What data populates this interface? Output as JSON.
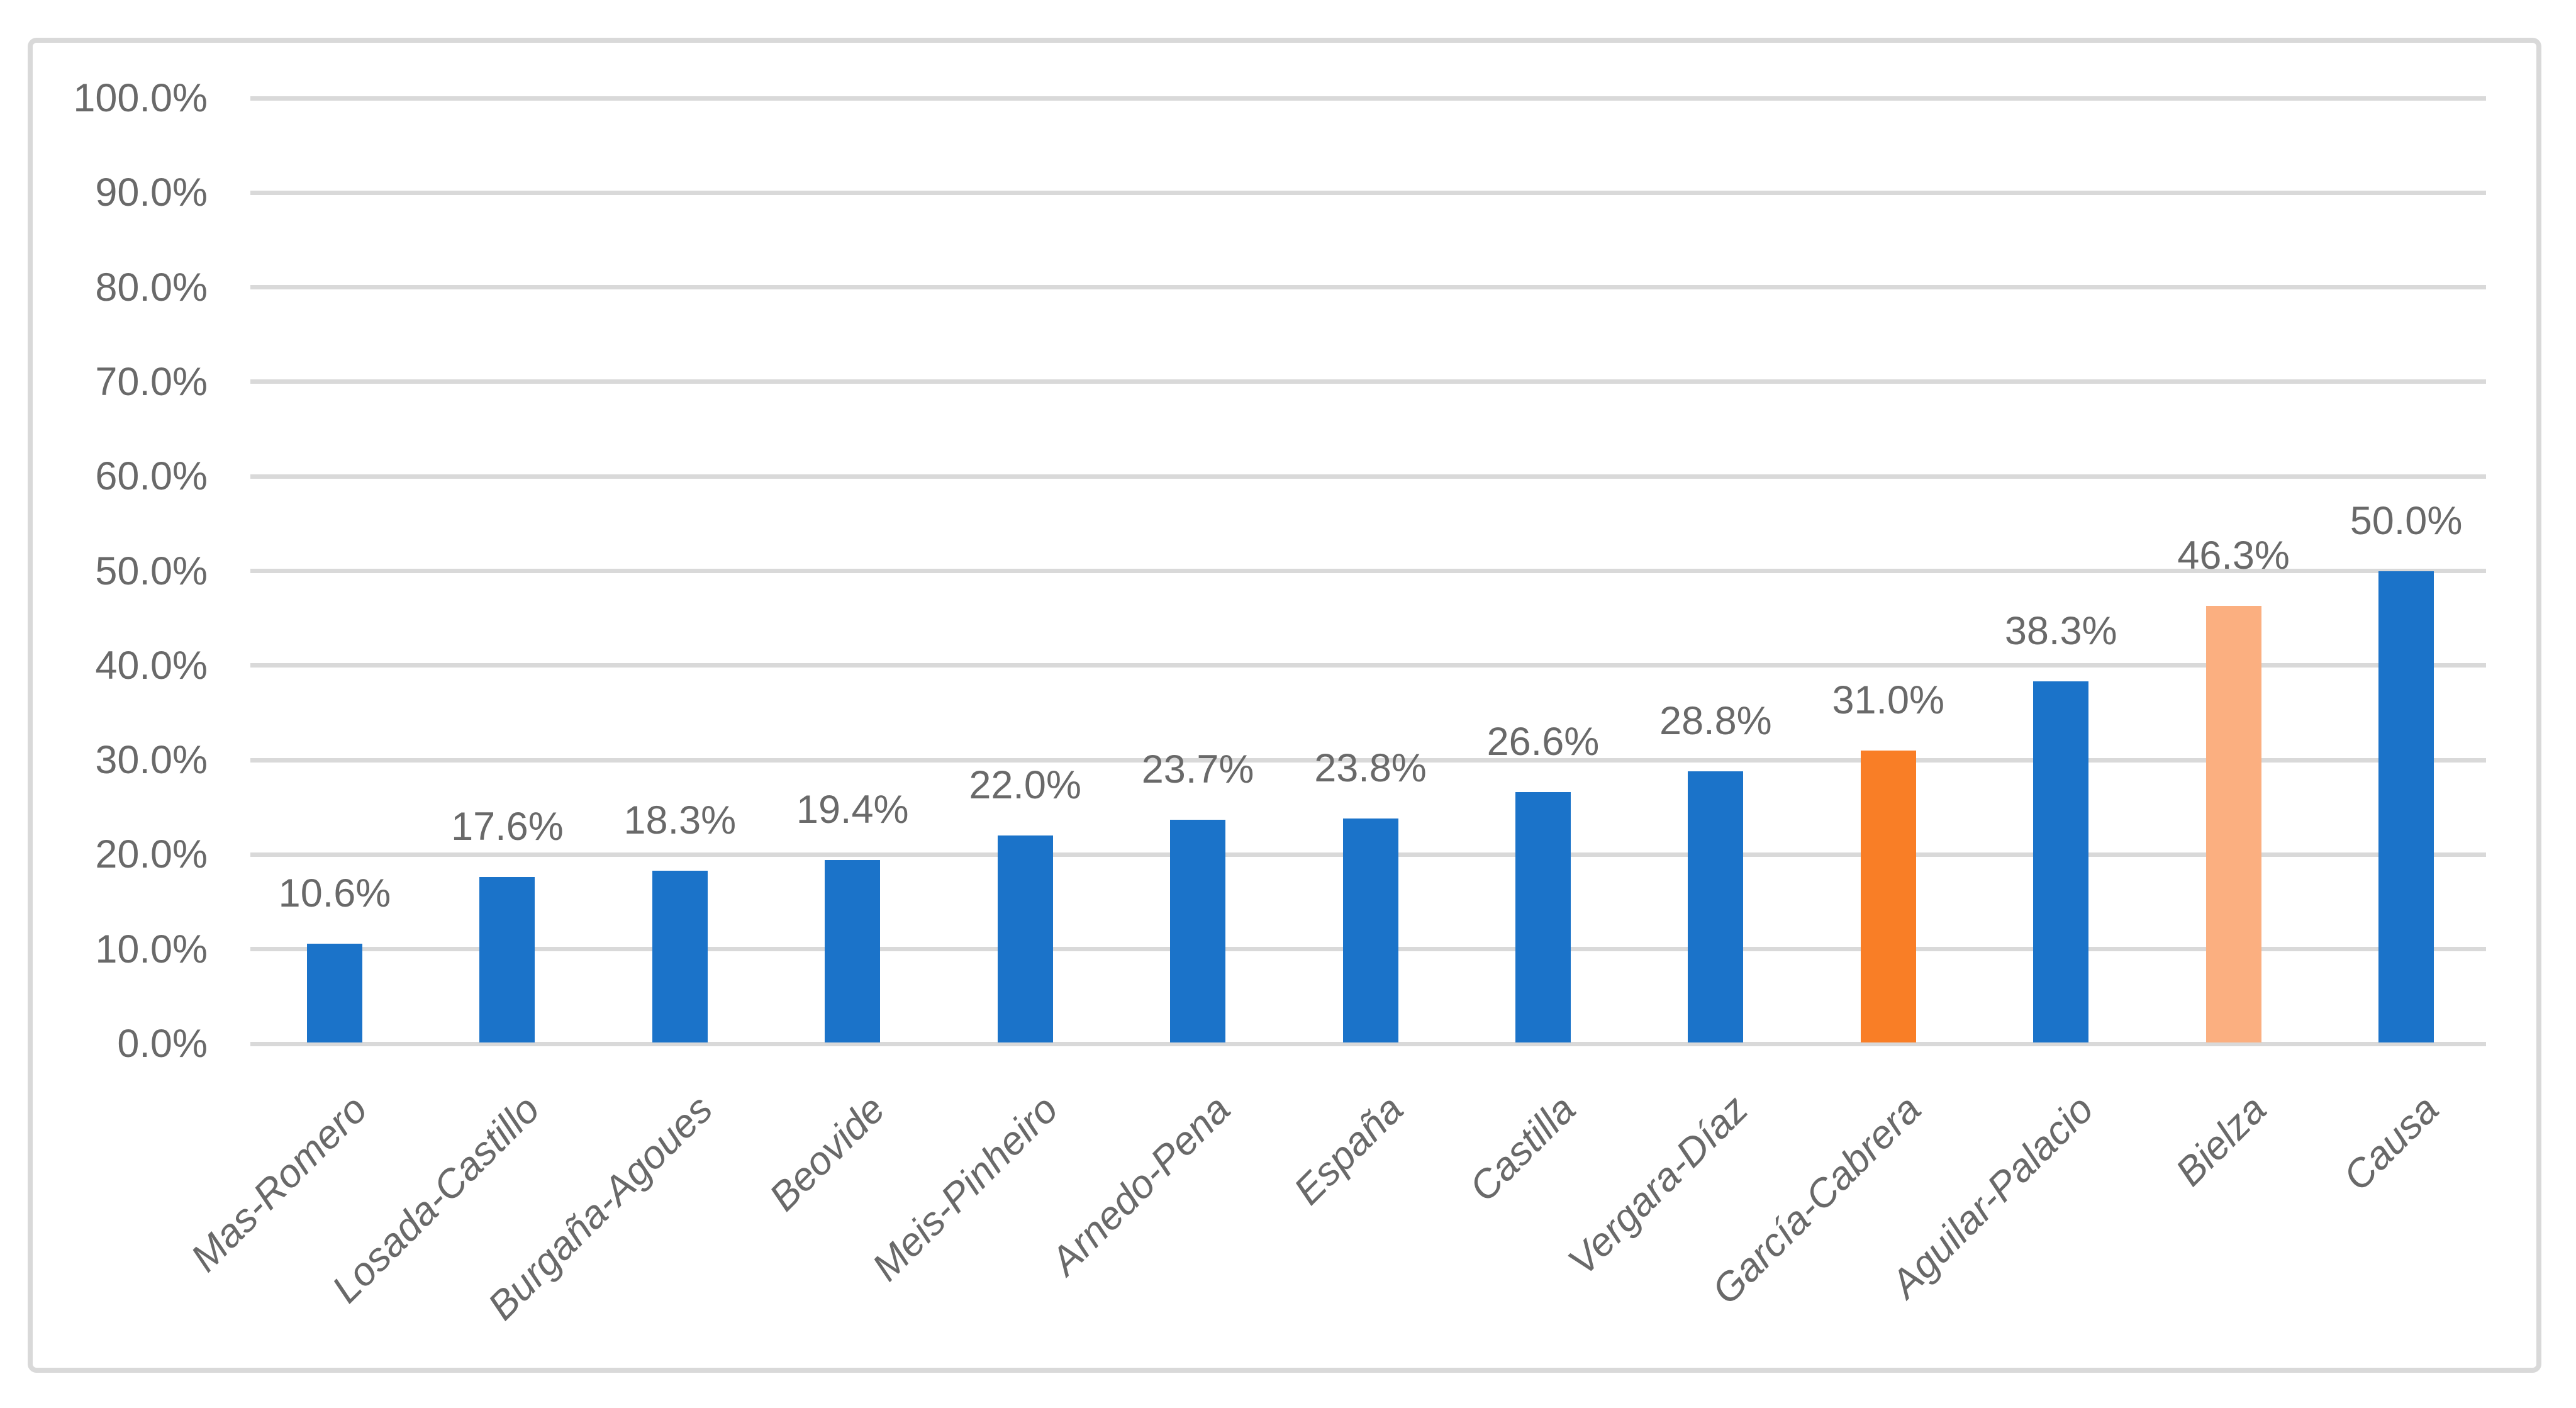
{
  "chart_data": {
    "type": "bar",
    "title": "",
    "xlabel": "",
    "ylabel": "",
    "categories": [
      "Mas-Romero",
      "Losada-Castillo",
      "Burgaña-Agoues",
      "Beovide",
      "Meis-Pinheiro",
      "Arnedo-Pena",
      "España",
      "Castilla",
      "Vergara-Díaz",
      "García-Cabrera",
      "Aguilar-Palacio",
      "Bielza",
      "Causa"
    ],
    "values": [
      10.6,
      17.6,
      18.3,
      19.4,
      22.0,
      23.7,
      23.8,
      26.6,
      28.8,
      31.0,
      38.3,
      46.3,
      50.0
    ],
    "data_labels": [
      "10.6%",
      "17.6%",
      "18.3%",
      "19.4%",
      "22.0%",
      "23.7%",
      "23.8%",
      "26.6%",
      "28.8%",
      "31.0%",
      "38.3%",
      "46.3%",
      "50.0%"
    ],
    "bar_colors": [
      "#1B73C9",
      "#1B73C9",
      "#1B73C9",
      "#1B73C9",
      "#1B73C9",
      "#1B73C9",
      "#1B73C9",
      "#1B73C9",
      "#1B73C9",
      "#F97E26",
      "#1B73C9",
      "#FBAF80",
      "#1B73C9"
    ],
    "ylim": [
      0,
      100
    ],
    "y_tick_labels": [
      "0.0%",
      "10.0%",
      "20.0%",
      "30.0%",
      "40.0%",
      "50.0%",
      "60.0%",
      "70.0%",
      "80.0%",
      "90.0%",
      "100.0%"
    ],
    "grid": true,
    "legend": "none",
    "colors": {
      "default_bar": "#1B73C9",
      "highlight_bar": "#F97E26",
      "highlight_bar_light": "#FBAF80",
      "gridline": "#D9D9D9",
      "chart_border": "#D9D9D9",
      "label_text": "#696969"
    }
  }
}
